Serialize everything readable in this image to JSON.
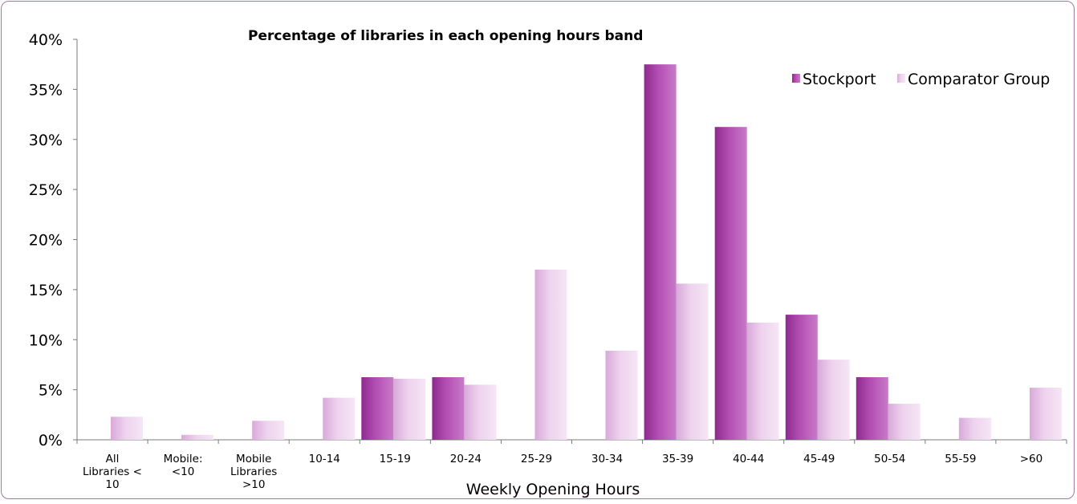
{
  "chart_data": {
    "type": "bar",
    "title": "Percentage of libraries in each opening hours band",
    "xlabel": "Weekly Opening Hours",
    "ylabel": "",
    "ylim": [
      0,
      40
    ],
    "y_ticks": [
      "0%",
      "5%",
      "10%",
      "15%",
      "20%",
      "25%",
      "30%",
      "35%",
      "40%"
    ],
    "grid": false,
    "legend_position": "top-right",
    "categories": [
      [
        "All",
        "Libraries <",
        "10"
      ],
      [
        "Mobile:",
        "<10"
      ],
      [
        "Mobile",
        "Libraries",
        ">10"
      ],
      [
        "10-14"
      ],
      [
        "15-19"
      ],
      [
        "20-24"
      ],
      [
        "25-29"
      ],
      [
        "30-34"
      ],
      [
        "35-39"
      ],
      [
        "40-44"
      ],
      [
        "45-49"
      ],
      [
        "50-54"
      ],
      [
        "55-59"
      ],
      [
        ">60"
      ]
    ],
    "series": [
      {
        "name": "Stockport",
        "color": "#a53ea5",
        "values": [
          0,
          0,
          0,
          0,
          6.25,
          6.25,
          0,
          0,
          37.5,
          31.25,
          12.5,
          6.25,
          0,
          0
        ]
      },
      {
        "name": "Comparator Group",
        "color": "#e8c4e8",
        "values": [
          2.3,
          0.5,
          1.9,
          4.2,
          6.1,
          5.5,
          17.0,
          8.9,
          15.6,
          11.7,
          8.0,
          3.6,
          2.2,
          5.2
        ]
      }
    ]
  }
}
